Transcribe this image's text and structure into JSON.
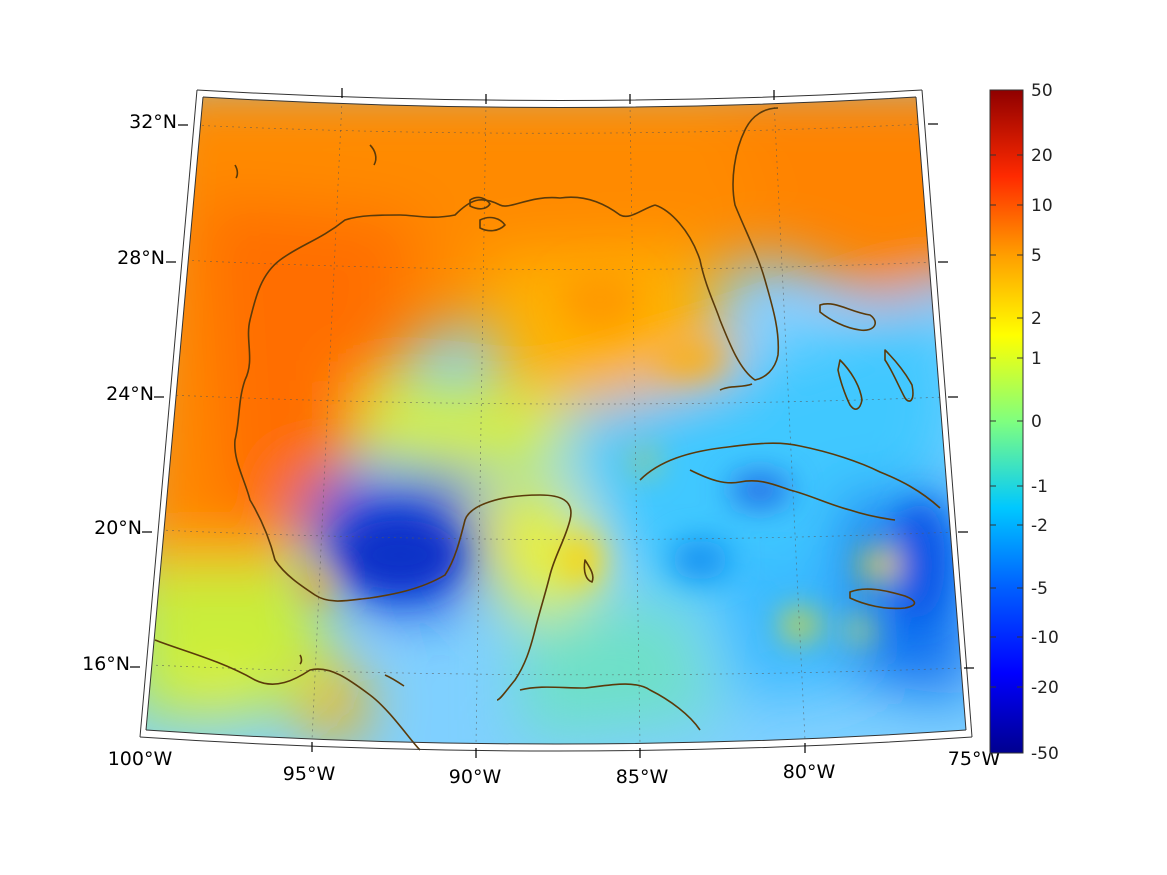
{
  "map": {
    "projection": "conic",
    "region": "Gulf of Mexico and Caribbean",
    "lon_range": [
      -100,
      -75
    ],
    "lat_range": [
      14,
      33
    ],
    "lon_tick_labels": [
      "100°W",
      "95°W",
      "90°W",
      "85°W",
      "80°W",
      "75°W"
    ],
    "lat_tick_labels": [
      "32°N",
      "28°N",
      "24°N",
      "20°N",
      "16°N"
    ],
    "coastline_color": "#5a3a0a",
    "gridlines": "dotted"
  },
  "colorbar": {
    "colormap": "jet",
    "scale": "symmetric-log",
    "tick_labels": [
      "50",
      "20",
      "10",
      "5",
      "2",
      "1",
      "0",
      "-1",
      "-2",
      "-5",
      "-10",
      "-20",
      "-50"
    ],
    "range": [
      -50,
      50
    ]
  },
  "field_colors": {
    "strong_positive": "#ff7a00",
    "positive": "#ffa500",
    "weak_positive": "#ffd500",
    "neutral": "#a8f05a",
    "weak_negative": "#3fe0e6",
    "negative": "#1aa6ff",
    "strong_negative": "#0a55e6",
    "deep_negative": "#0b2fc9"
  }
}
